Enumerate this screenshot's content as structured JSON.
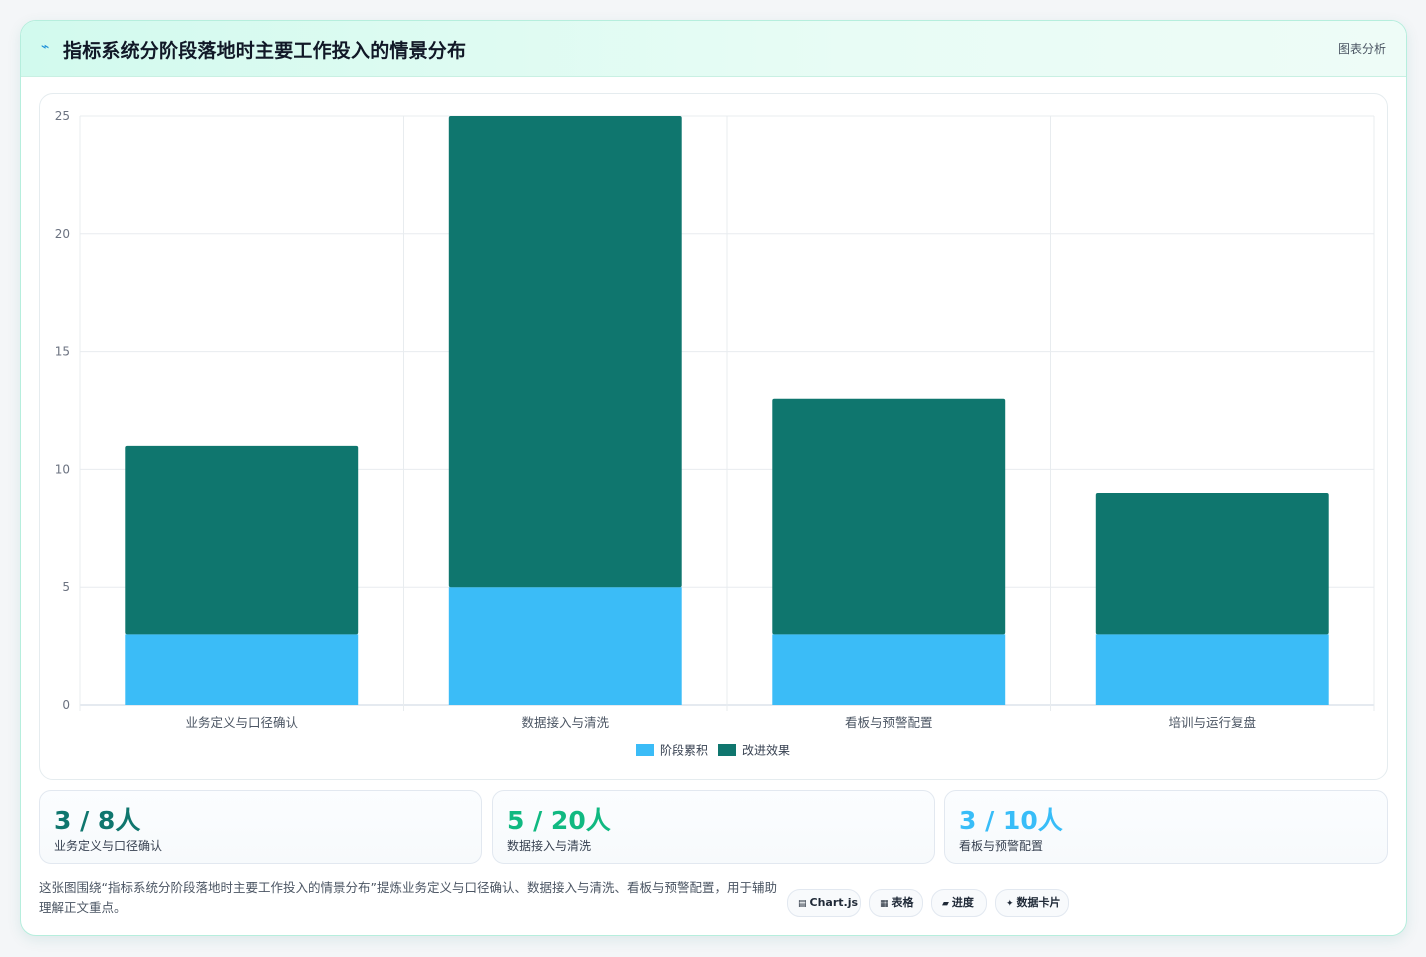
{
  "header": {
    "icon": "pulse-icon",
    "title": "指标系统分阶段落地时主要工作投入的情景分布",
    "link_label": "图表分析"
  },
  "chart_data": {
    "type": "bar",
    "stacked": true,
    "categories": [
      "业务定义与口径确认",
      "数据接入与清洗",
      "看板与预警配置",
      "培训与运行复盘"
    ],
    "series": [
      {
        "name": "阶段累积",
        "values": [
          3,
          5,
          3,
          3
        ],
        "color": "#3bbcf7"
      },
      {
        "name": "改进效果",
        "values": [
          8,
          20,
          10,
          6
        ],
        "color": "#0f766e"
      }
    ],
    "ylim": [
      0,
      25
    ],
    "yticks": [
      0,
      5,
      10,
      15,
      20,
      25
    ],
    "grid": true,
    "legend": "bottom"
  },
  "stats": [
    {
      "value": "3 / 8人",
      "label": "业务定义与口径确认",
      "color": "#0f766e"
    },
    {
      "value": "5 / 20人",
      "label": "数据接入与清洗",
      "color": "#10b981"
    },
    {
      "value": "3 / 10人",
      "label": "看板与预警配置",
      "color": "#38bdf8"
    }
  ],
  "description": "这张图围绕“指标系统分阶段落地时主要工作投入的情景分布”提炼业务定义与口径确认、数据接入与清洗、看板与预警配置，用于辅助理解正文重点。",
  "tags": [
    {
      "icon_char": "▤",
      "icon": "chart-icon",
      "label": "Chart.js"
    },
    {
      "icon_char": "▦",
      "icon": "table-icon",
      "label": "表格"
    },
    {
      "icon_char": "▰",
      "icon": "progress-icon",
      "label": "进度"
    },
    {
      "icon_char": "✦",
      "icon": "sparkle-icon",
      "label": "数据卡片"
    }
  ]
}
